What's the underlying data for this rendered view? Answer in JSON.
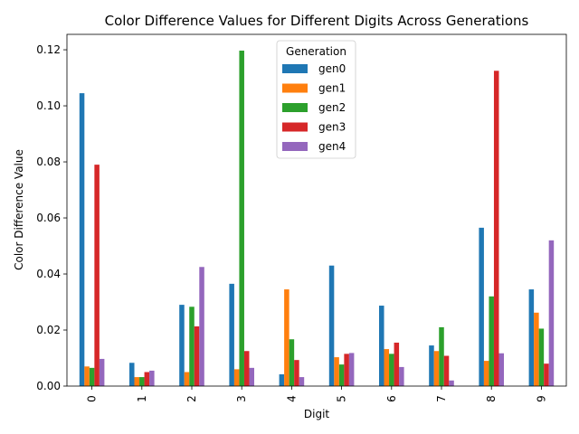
{
  "chart_data": {
    "type": "bar",
    "title": "Color Difference Values for Different Digits Across Generations",
    "xlabel": "Digit",
    "ylabel": "Color Difference Value",
    "categories": [
      "0",
      "1",
      "2",
      "3",
      "4",
      "5",
      "6",
      "7",
      "8",
      "9"
    ],
    "ylim": [
      0,
      0.1255
    ],
    "yticks": [
      0.0,
      0.02,
      0.04,
      0.06,
      0.08,
      0.1,
      0.12
    ],
    "ytick_labels": [
      "0.00",
      "0.02",
      "0.04",
      "0.06",
      "0.08",
      "0.10",
      "0.12"
    ],
    "grid": false,
    "legend": {
      "title": "Generation",
      "placement": "top-center"
    },
    "series": [
      {
        "name": "gen0",
        "color": "#1f77b4",
        "values": [
          0.1045,
          0.0083,
          0.029,
          0.0365,
          0.0042,
          0.043,
          0.0287,
          0.0145,
          0.0565,
          0.0345
        ]
      },
      {
        "name": "gen1",
        "color": "#ff7f0e",
        "values": [
          0.007,
          0.0032,
          0.005,
          0.006,
          0.0345,
          0.0103,
          0.0132,
          0.0125,
          0.009,
          0.0262
        ]
      },
      {
        "name": "gen2",
        "color": "#2ca02c",
        "values": [
          0.0065,
          0.0032,
          0.0283,
          0.1197,
          0.0167,
          0.0077,
          0.0115,
          0.021,
          0.032,
          0.0205
        ]
      },
      {
        "name": "gen3",
        "color": "#d62728",
        "values": [
          0.079,
          0.005,
          0.0213,
          0.0125,
          0.0093,
          0.0115,
          0.0155,
          0.0108,
          0.1125,
          0.008
        ]
      },
      {
        "name": "gen4",
        "color": "#9467bd",
        "values": [
          0.0097,
          0.0055,
          0.0425,
          0.0065,
          0.0032,
          0.0118,
          0.0068,
          0.002,
          0.0117,
          0.052
        ]
      }
    ]
  }
}
